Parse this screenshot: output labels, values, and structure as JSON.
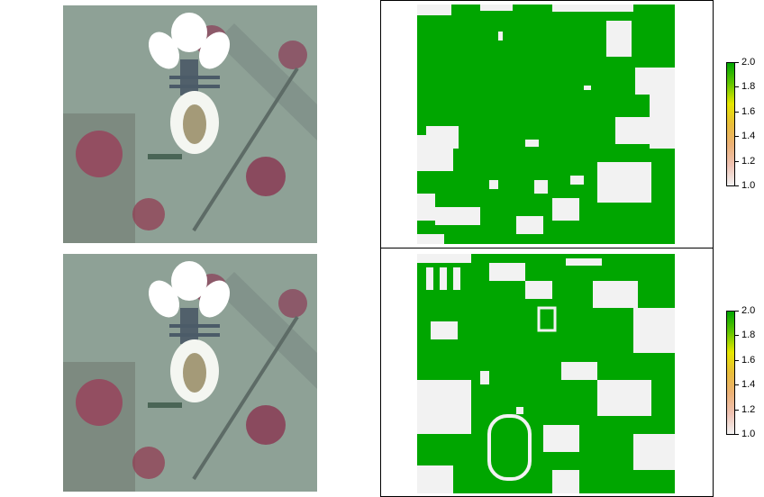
{
  "colors": {
    "class_low": "#f2f2f2",
    "class_high": "#00a600",
    "frame": "#000000"
  },
  "legend": {
    "top_panel_ticks": [
      "2.0",
      "1.8",
      "1.6",
      "1.4",
      "1.2",
      "1.0"
    ],
    "bottom_panel_ticks": [
      "2.0",
      "1.8",
      "1.6",
      "1.4",
      "1.2",
      "1.0"
    ],
    "gradient_stops": [
      "#00a600",
      "#63c600",
      "#e6e600",
      "#e9bd3a",
      "#ecb176",
      "#efc2b3",
      "#f2f2f2"
    ]
  },
  "panels": [
    {
      "name": "top-left",
      "type": "satellite-image"
    },
    {
      "name": "top-right",
      "type": "classified-map"
    },
    {
      "name": "bottom-left",
      "type": "satellite-image"
    },
    {
      "name": "bottom-right",
      "type": "classified-map"
    }
  ]
}
